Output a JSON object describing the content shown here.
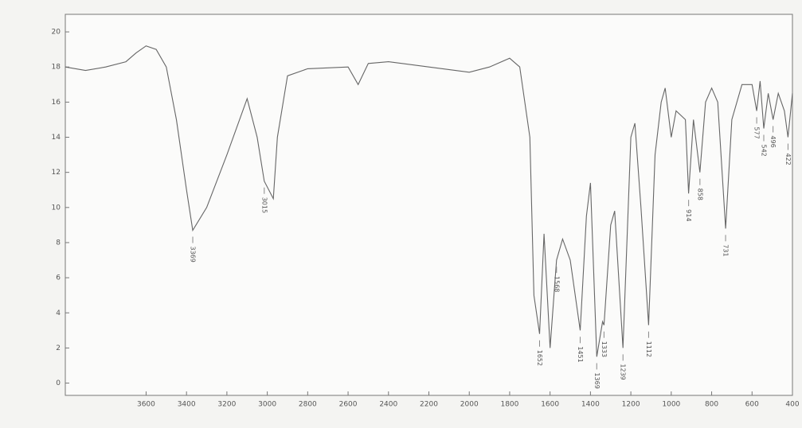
{
  "chart_data": {
    "type": "line",
    "x": [
      4000,
      3900,
      3800,
      3700,
      3650,
      3600,
      3550,
      3500,
      3450,
      3400,
      3369,
      3300,
      3200,
      3100,
      3050,
      3015,
      2970,
      2950,
      2900,
      2800,
      2600,
      2550,
      2500,
      2400,
      2200,
      2000,
      1900,
      1800,
      1750,
      1700,
      1680,
      1652,
      1630,
      1600,
      1568,
      1538,
      1500,
      1451,
      1420,
      1400,
      1380,
      1369,
      1340,
      1333,
      1300,
      1280,
      1239,
      1200,
      1180,
      1150,
      1112,
      1080,
      1050,
      1030,
      1000,
      976,
      930,
      914,
      890,
      858,
      830,
      800,
      770,
      731,
      700,
      650,
      600,
      577,
      560,
      542,
      520,
      496,
      470,
      440,
      422,
      400
    ],
    "values": [
      18.0,
      17.8,
      18.0,
      18.3,
      18.8,
      19.2,
      19.0,
      18.0,
      15.0,
      11.0,
      8.7,
      10.0,
      13.0,
      16.2,
      14.0,
      11.5,
      10.5,
      14.0,
      17.5,
      17.9,
      18.0,
      17.0,
      18.2,
      18.3,
      18.0,
      17.7,
      18.0,
      18.5,
      18.0,
      14.0,
      5.0,
      2.8,
      8.5,
      2.0,
      7.0,
      8.2,
      7.0,
      3.0,
      9.5,
      11.4,
      5.0,
      1.5,
      3.5,
      3.3,
      9.0,
      9.8,
      2.0,
      14.0,
      14.8,
      10.0,
      3.3,
      13.0,
      16.0,
      16.8,
      14.0,
      15.5,
      15.0,
      10.8,
      15.0,
      12.0,
      16.0,
      16.8,
      16.0,
      8.8,
      15.0,
      17.0,
      17.0,
      15.5,
      17.2,
      14.5,
      16.5,
      15.0,
      16.5,
      15.5,
      14.0,
      16.5
    ],
    "color": "#666666",
    "xlim": [
      4000,
      400
    ],
    "ylim": [
      -0.7,
      21
    ],
    "xticks": [
      3600,
      3400,
      3200,
      3000,
      2800,
      2600,
      2400,
      2200,
      2000,
      1800,
      1600,
      1400,
      1200,
      1000,
      800,
      600,
      400
    ],
    "yticks": [
      20,
      18,
      16,
      14,
      12,
      10,
      8,
      6,
      4,
      2,
      0
    ],
    "peaks": [
      3369,
      3015,
      1652,
      1568,
      1451,
      1369,
      1333,
      1239,
      1112,
      914,
      858,
      731,
      577,
      542,
      496,
      422
    ]
  }
}
